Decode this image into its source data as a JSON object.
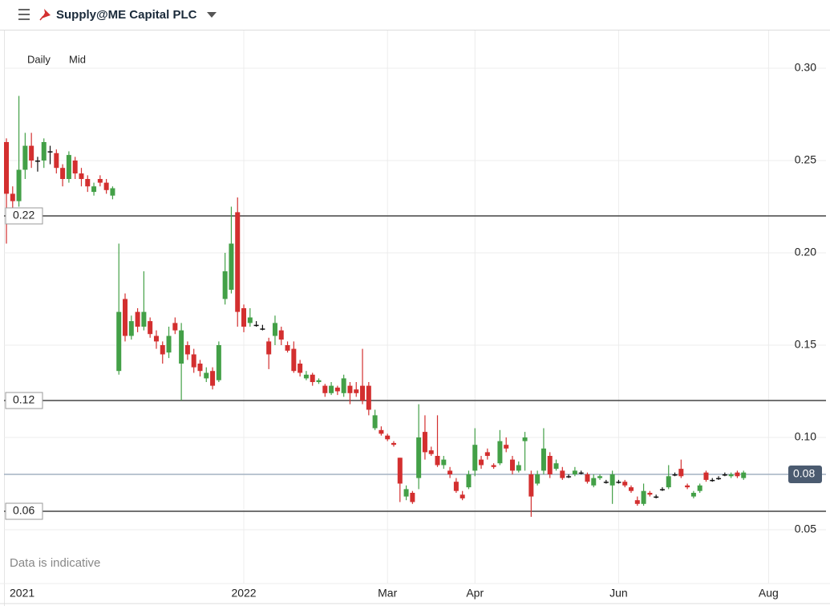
{
  "header": {
    "title": "Supply@ME Capital PLC"
  },
  "chart_data": {
    "type": "candlestick",
    "interval": "Daily",
    "price_type": "Mid",
    "note": "Data is indicative",
    "up_color": "#43a047",
    "down_color": "#d32f2f",
    "grid": true,
    "categories": [
      null,
      null,
      null,
      "2021",
      null,
      null,
      null,
      null,
      null,
      null,
      null,
      null,
      null,
      null,
      null,
      null,
      null,
      null,
      null,
      null,
      null,
      null,
      null,
      null,
      null,
      null,
      null,
      null,
      null,
      null,
      null,
      null,
      null,
      null,
      null,
      null,
      null,
      null,
      "2022",
      null,
      null,
      null,
      null,
      null,
      null,
      null,
      null,
      null,
      null,
      null,
      null,
      null,
      null,
      null,
      null,
      null,
      null,
      null,
      null,
      null,
      null,
      "Mar",
      null,
      null,
      null,
      null,
      null,
      null,
      null,
      null,
      null,
      null,
      null,
      null,
      null,
      "Apr",
      null,
      null,
      null,
      null,
      null,
      null,
      null,
      null,
      null,
      null,
      null,
      null,
      null,
      null,
      null,
      null,
      null,
      null,
      null,
      null,
      null,
      null,
      "Jun",
      null,
      null,
      null,
      null,
      null,
      null,
      null,
      null,
      null,
      null,
      null,
      null,
      null,
      null,
      null,
      null,
      null,
      null,
      null,
      null,
      null,
      null,
      null,
      "Aug"
    ],
    "open": [
      0.26,
      0.232,
      0.228,
      0.245,
      0.258,
      0.25,
      0.25,
      0.255,
      0.254,
      0.246,
      0.24,
      0.25,
      0.243,
      0.24,
      0.233,
      0.24,
      0.238,
      0.231,
      0.136,
      0.175,
      0.155,
      0.168,
      0.16,
      0.163,
      0.155,
      0.15,
      0.146,
      0.162,
      0.14,
      0.15,
      0.145,
      0.14,
      0.132,
      0.136,
      0.131,
      0.175,
      0.18,
      0.222,
      0.17,
      0.162,
      0.161,
      0.159,
      0.152,
      0.155,
      0.158,
      0.15,
      0.148,
      0.14,
      0.132,
      0.134,
      0.13,
      0.128,
      0.124,
      0.127,
      0.124,
      0.128,
      0.126,
      0.128,
      0.128,
      0.105,
      0.104,
      0.101,
      0.097,
      0.089,
      0.068,
      0.07,
      0.078,
      0.103,
      0.093,
      0.09,
      0.085,
      0.082,
      0.076,
      0.069,
      0.073,
      0.082,
      0.088,
      0.092,
      0.085,
      0.086,
      0.096,
      0.088,
      0.082,
      0.098,
      0.08,
      0.075,
      0.082,
      0.09,
      0.083,
      0.082,
      0.079,
      0.08,
      0.081,
      0.08,
      0.074,
      0.078,
      0.076,
      0.074,
      0.076,
      0.076,
      0.073,
      0.066,
      0.064,
      0.07,
      0.068,
      0.072,
      0.073,
      0.08,
      0.083,
      0.074,
      0.068,
      0.071,
      0.081,
      0.077,
      0.078,
      0.08,
      0.079,
      0.081,
      0.078,
      null,
      null,
      null,
      null
    ],
    "high": [
      0.262,
      0.236,
      0.285,
      0.265,
      0.265,
      0.252,
      0.262,
      0.258,
      0.256,
      0.248,
      0.255,
      0.252,
      0.246,
      0.242,
      0.238,
      0.242,
      0.24,
      0.236,
      0.205,
      0.178,
      0.166,
      0.17,
      0.19,
      0.165,
      0.158,
      0.152,
      0.16,
      0.165,
      0.162,
      0.152,
      0.148,
      0.142,
      0.138,
      0.138,
      0.152,
      0.2,
      0.225,
      0.23,
      0.172,
      0.17,
      0.163,
      0.161,
      0.154,
      0.166,
      0.16,
      0.152,
      0.152,
      0.142,
      0.136,
      0.135,
      0.132,
      0.129,
      0.13,
      0.128,
      0.134,
      0.13,
      0.13,
      0.148,
      0.13,
      0.115,
      0.106,
      0.102,
      0.098,
      0.089,
      0.074,
      0.071,
      0.118,
      0.112,
      0.095,
      0.112,
      0.09,
      0.084,
      0.078,
      0.071,
      0.082,
      0.105,
      0.09,
      0.094,
      0.086,
      0.104,
      0.1,
      0.09,
      0.087,
      0.103,
      0.082,
      0.082,
      0.105,
      0.092,
      0.088,
      0.084,
      0.08,
      0.084,
      0.082,
      0.081,
      0.08,
      0.08,
      0.077,
      0.082,
      0.077,
      0.077,
      0.074,
      0.068,
      0.075,
      0.071,
      0.069,
      0.073,
      0.085,
      0.081,
      0.088,
      0.075,
      0.071,
      0.075,
      0.082,
      0.078,
      0.079,
      0.081,
      0.081,
      0.082,
      0.082,
      null,
      null,
      null,
      null
    ],
    "low": [
      0.205,
      0.222,
      0.225,
      0.24,
      0.246,
      0.244,
      0.246,
      0.248,
      0.243,
      0.236,
      0.238,
      0.24,
      0.236,
      0.233,
      0.231,
      0.236,
      0.232,
      0.229,
      0.134,
      0.152,
      0.153,
      0.157,
      0.158,
      0.154,
      0.148,
      0.14,
      0.143,
      0.156,
      0.12,
      0.142,
      0.135,
      0.133,
      0.13,
      0.126,
      0.13,
      0.172,
      0.178,
      0.16,
      0.157,
      0.16,
      0.16,
      0.158,
      0.137,
      0.15,
      0.15,
      0.146,
      0.135,
      0.133,
      0.131,
      0.128,
      0.129,
      0.122,
      0.123,
      0.123,
      0.122,
      0.118,
      0.122,
      0.118,
      0.112,
      0.104,
      0.101,
      0.098,
      0.095,
      0.065,
      0.066,
      0.064,
      0.072,
      0.088,
      0.09,
      0.084,
      0.083,
      0.078,
      0.07,
      0.066,
      0.072,
      0.079,
      0.083,
      0.088,
      0.083,
      0.085,
      0.092,
      0.08,
      0.081,
      0.082,
      0.057,
      0.074,
      0.08,
      0.078,
      0.082,
      0.077,
      0.078,
      0.079,
      0.08,
      0.075,
      0.073,
      0.077,
      0.075,
      0.064,
      0.075,
      0.073,
      0.07,
      0.063,
      0.063,
      0.068,
      0.067,
      0.071,
      0.072,
      0.079,
      0.078,
      0.072,
      0.067,
      0.07,
      0.076,
      0.076,
      0.077,
      0.079,
      0.078,
      0.078,
      0.077,
      null,
      null,
      null,
      null
    ],
    "close": [
      0.232,
      0.228,
      0.245,
      0.258,
      0.25,
      0.25,
      0.26,
      0.255,
      0.246,
      0.24,
      0.253,
      0.243,
      0.24,
      0.236,
      0.236,
      0.238,
      0.234,
      0.235,
      0.168,
      0.155,
      0.163,
      0.16,
      0.168,
      0.156,
      0.152,
      0.145,
      0.155,
      0.158,
      0.158,
      0.145,
      0.138,
      0.136,
      0.135,
      0.128,
      0.15,
      0.19,
      0.205,
      0.168,
      0.16,
      0.165,
      0.161,
      0.159,
      0.145,
      0.162,
      0.153,
      0.147,
      0.136,
      0.135,
      0.134,
      0.13,
      0.131,
      0.124,
      0.128,
      0.125,
      0.132,
      0.124,
      0.124,
      0.12,
      0.115,
      0.112,
      0.102,
      0.099,
      0.096,
      0.075,
      0.072,
      0.065,
      0.1,
      0.092,
      0.091,
      0.085,
      0.088,
      0.08,
      0.071,
      0.067,
      0.08,
      0.096,
      0.085,
      0.09,
      0.084,
      0.098,
      0.094,
      0.082,
      0.085,
      0.1,
      0.068,
      0.08,
      0.094,
      0.08,
      0.086,
      0.078,
      0.079,
      0.082,
      0.081,
      0.076,
      0.078,
      0.079,
      0.076,
      0.08,
      0.076,
      0.074,
      0.071,
      0.064,
      0.071,
      0.069,
      0.068,
      0.072,
      0.079,
      0.08,
      0.079,
      0.073,
      0.07,
      0.074,
      0.077,
      0.077,
      0.078,
      0.08,
      0.08,
      0.079,
      0.081,
      null,
      null,
      null,
      null
    ],
    "ylim": [
      0.02,
      0.32
    ],
    "yticks": [
      0.05,
      {
        "value": 0.1,
        "label": "0.10"
      },
      0.15,
      {
        "value": 0.2,
        "label": "0.20"
      },
      0.25,
      {
        "value": 0.3,
        "label": "0.30"
      }
    ],
    "levels": [
      0.22,
      0.12,
      0.06
    ],
    "last_price": 0.08
  }
}
